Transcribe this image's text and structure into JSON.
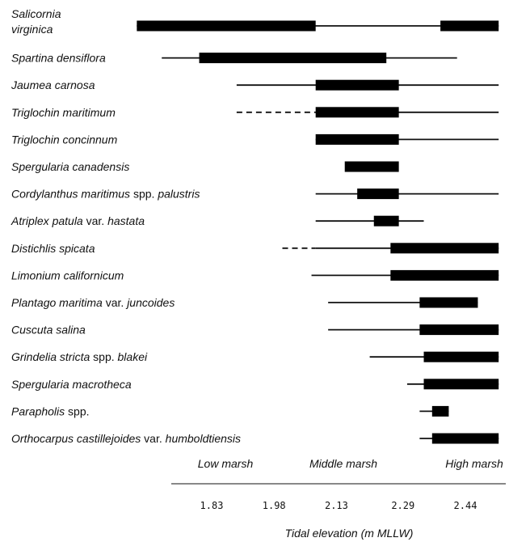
{
  "chart_data": {
    "type": "range",
    "xlabel": "Tidal elevation (m MLLW)",
    "x_ticks": [
      {
        "value": 1.83,
        "label": "1.83"
      },
      {
        "value": 1.98,
        "label": "1.98"
      },
      {
        "value": 2.13,
        "label": "2.13"
      },
      {
        "value": 2.29,
        "label": "2.29"
      },
      {
        "value": 2.44,
        "label": "2.44"
      }
    ],
    "xlim": [
      1.83,
      2.44
    ],
    "zones": [
      {
        "label": "Low marsh",
        "center": 1.87
      },
      {
        "label": "Middle marsh",
        "center": 2.13
      },
      {
        "label": "High marsh",
        "center": 2.44
      }
    ],
    "species": [
      {
        "label_parts": [
          {
            "text": "Salicornia",
            "italic": true
          }
        ],
        "label_line2": [
          {
            "text": "virginica",
            "italic": true
          }
        ],
        "lines": [
          {
            "from": 1.65,
            "to": 2.52,
            "style": "solid"
          }
        ],
        "bars": [
          {
            "from": 1.65,
            "to": 2.08
          },
          {
            "from": 2.38,
            "to": 2.52
          }
        ]
      },
      {
        "label_parts": [
          {
            "text": "Spartina densiflora",
            "italic": true
          }
        ],
        "lines": [
          {
            "from": 1.71,
            "to": 2.42,
            "style": "solid"
          }
        ],
        "bars": [
          {
            "from": 1.8,
            "to": 2.25
          }
        ]
      },
      {
        "label_parts": [
          {
            "text": "Jaumea carnosa",
            "italic": true
          }
        ],
        "lines": [
          {
            "from": 1.89,
            "to": 2.52,
            "style": "solid"
          }
        ],
        "bars": [
          {
            "from": 2.08,
            "to": 2.28
          }
        ]
      },
      {
        "label_parts": [
          {
            "text": "Triglochin maritimum",
            "italic": true
          }
        ],
        "lines": [
          {
            "from": 1.89,
            "to": 2.08,
            "style": "dashed"
          },
          {
            "from": 2.08,
            "to": 2.52,
            "style": "solid"
          }
        ],
        "bars": [
          {
            "from": 2.08,
            "to": 2.28
          }
        ]
      },
      {
        "label_parts": [
          {
            "text": "Triglochin concinnum",
            "italic": true
          }
        ],
        "lines": [
          {
            "from": 2.08,
            "to": 2.52,
            "style": "solid"
          }
        ],
        "bars": [
          {
            "from": 2.08,
            "to": 2.28
          }
        ]
      },
      {
        "label_parts": [
          {
            "text": "Spergularia canadensis",
            "italic": true
          }
        ],
        "lines": [],
        "bars": [
          {
            "from": 2.15,
            "to": 2.28
          }
        ]
      },
      {
        "label_parts": [
          {
            "text": "Cordylanthus maritimus",
            "italic": true
          },
          {
            "text": " spp. ",
            "italic": false
          },
          {
            "text": "palustris",
            "italic": true
          }
        ],
        "lines": [
          {
            "from": 2.08,
            "to": 2.52,
            "style": "solid"
          }
        ],
        "bars": [
          {
            "from": 2.18,
            "to": 2.28
          }
        ]
      },
      {
        "label_parts": [
          {
            "text": "Atriplex patula",
            "italic": true
          },
          {
            "text": " var. ",
            "italic": false
          },
          {
            "text": "hastata",
            "italic": true
          }
        ],
        "lines": [
          {
            "from": 2.08,
            "to": 2.34,
            "style": "solid"
          }
        ],
        "bars": [
          {
            "from": 2.22,
            "to": 2.28
          }
        ]
      },
      {
        "label_parts": [
          {
            "text": "Distichlis spicata",
            "italic": true
          }
        ],
        "lines": [
          {
            "from": 2.0,
            "to": 2.08,
            "style": "dashed"
          },
          {
            "from": 2.08,
            "to": 2.52,
            "style": "solid"
          }
        ],
        "bars": [
          {
            "from": 2.26,
            "to": 2.52
          }
        ]
      },
      {
        "label_parts": [
          {
            "text": "Limonium californicum",
            "italic": true
          }
        ],
        "lines": [
          {
            "from": 2.07,
            "to": 2.52,
            "style": "solid"
          }
        ],
        "bars": [
          {
            "from": 2.26,
            "to": 2.52
          }
        ]
      },
      {
        "label_parts": [
          {
            "text": "Plantago maritima",
            "italic": true
          },
          {
            "text": " var. ",
            "italic": false
          },
          {
            "text": "juncoides",
            "italic": true
          }
        ],
        "lines": [
          {
            "from": 2.11,
            "to": 2.47,
            "style": "solid"
          }
        ],
        "bars": [
          {
            "from": 2.33,
            "to": 2.47
          }
        ]
      },
      {
        "label_parts": [
          {
            "text": "Cuscuta salina",
            "italic": true
          }
        ],
        "lines": [
          {
            "from": 2.11,
            "to": 2.52,
            "style": "solid"
          }
        ],
        "bars": [
          {
            "from": 2.33,
            "to": 2.52
          }
        ]
      },
      {
        "label_parts": [
          {
            "text": "Grindelia  stricta",
            "italic": true
          },
          {
            "text": " spp. ",
            "italic": false
          },
          {
            "text": "blakei",
            "italic": true
          }
        ],
        "lines": [
          {
            "from": 2.21,
            "to": 2.52,
            "style": "solid"
          }
        ],
        "bars": [
          {
            "from": 2.34,
            "to": 2.52
          }
        ]
      },
      {
        "label_parts": [
          {
            "text": "Spergularia macrotheca",
            "italic": true
          }
        ],
        "lines": [
          {
            "from": 2.3,
            "to": 2.52,
            "style": "solid"
          }
        ],
        "bars": [
          {
            "from": 2.34,
            "to": 2.52
          }
        ]
      },
      {
        "label_parts": [
          {
            "text": "Parapholis",
            "italic": true
          },
          {
            "text": " spp.",
            "italic": false
          }
        ],
        "lines": [
          {
            "from": 2.33,
            "to": 2.4,
            "style": "solid"
          }
        ],
        "bars": [
          {
            "from": 2.36,
            "to": 2.4
          }
        ]
      },
      {
        "label_parts": [
          {
            "text": "Orthocarpus castillejoides",
            "italic": true
          },
          {
            "text": " var. ",
            "italic": false
          },
          {
            "text": "humboldtiensis",
            "italic": true
          }
        ],
        "lines": [
          {
            "from": 2.33,
            "to": 2.52,
            "style": "solid"
          }
        ],
        "bars": [
          {
            "from": 2.36,
            "to": 2.52
          }
        ]
      }
    ]
  }
}
